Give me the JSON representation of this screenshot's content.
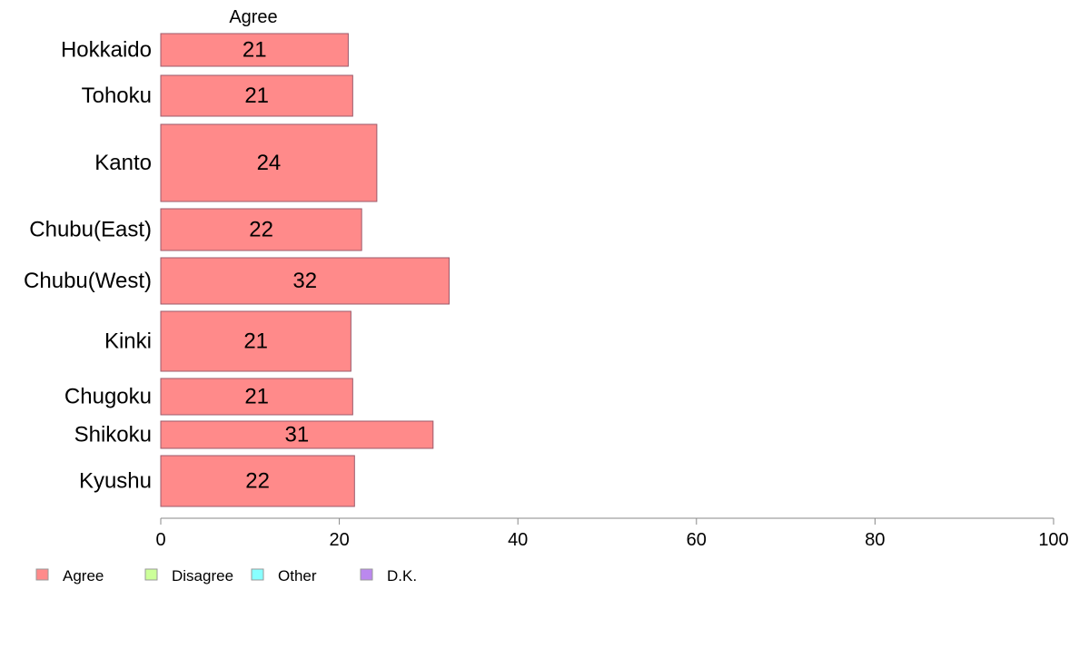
{
  "chart_data": {
    "type": "bar",
    "orientation": "horizontal",
    "column_header": "Agree",
    "categories": [
      "Hokkaido",
      "Tohoku",
      "Kanto",
      "Chubu(East)",
      "Chubu(West)",
      "Kinki",
      "Chugoku",
      "Shikoku",
      "Kyushu"
    ],
    "series": [
      {
        "name": "Agree",
        "values": [
          21,
          21.5,
          24.2,
          22.5,
          32.3,
          21.3,
          21.5,
          30.5,
          21.7
        ],
        "labels": [
          "21",
          "21",
          "24",
          "22",
          "32",
          "21",
          "21",
          "31",
          "22"
        ]
      }
    ],
    "xlim": [
      0,
      100
    ],
    "xticks": [
      "0",
      "20",
      "40",
      "60",
      "80",
      "100"
    ],
    "legend": {
      "position": "bottom-left",
      "entries": [
        {
          "name": "Agree",
          "color": "#ff8a8a"
        },
        {
          "name": "Disagree",
          "color": "#ccff99"
        },
        {
          "name": "Other",
          "color": "#88ffff"
        },
        {
          "name": "D.K.",
          "color": "#bb88ee"
        }
      ]
    },
    "bar_color": "#ff8a8a",
    "bar_stroke": "#9b5a6a",
    "grid": false
  }
}
